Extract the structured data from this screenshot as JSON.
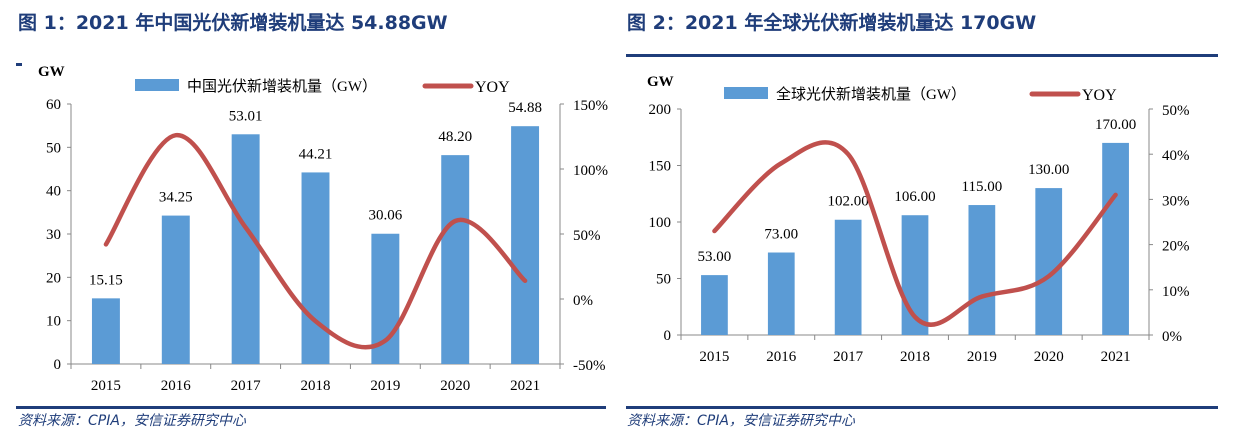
{
  "chart_data": [
    {
      "type": "bar+line",
      "title": "图 1：2021 年中国光伏新增装机量达 54.88GW",
      "source": "资料来源：CPIA，安信证券研究中心",
      "ylabel": "GW",
      "categories": [
        "2015",
        "2016",
        "2017",
        "2018",
        "2019",
        "2020",
        "2021"
      ],
      "series": [
        {
          "name": "中国光伏新增装机量（GW）",
          "type": "bar",
          "axis": "left",
          "values": [
            15.15,
            34.25,
            53.01,
            44.21,
            30.06,
            48.2,
            54.88
          ],
          "labels": [
            "15.15",
            "34.25",
            "53.01",
            "44.21",
            "30.06",
            "48.20",
            "54.88"
          ],
          "color": "#5b9bd5"
        },
        {
          "name": "YOY",
          "type": "line",
          "axis": "right",
          "values": [
            42,
            126,
            55,
            -17,
            -32,
            60,
            14
          ],
          "color": "#c0504d"
        }
      ],
      "ylim": [
        0,
        60
      ],
      "yticks": [
        "0",
        "10",
        "20",
        "30",
        "40",
        "50",
        "60"
      ],
      "y2lim": [
        -50,
        150
      ],
      "y2ticks": [
        "-50%",
        "0%",
        "50%",
        "100%",
        "150%"
      ],
      "legend": "top",
      "grid": false
    },
    {
      "type": "bar+line",
      "title": "图 2：2021 年全球光伏新增装机量达 170GW",
      "source": "资料来源：CPIA，安信证券研究中心",
      "ylabel": "GW",
      "categories": [
        "2015",
        "2016",
        "2017",
        "2018",
        "2019",
        "2020",
        "2021"
      ],
      "series": [
        {
          "name": "全球光伏新增装机量（GW）",
          "type": "bar",
          "axis": "left",
          "values": [
            53,
            73,
            102,
            106,
            115,
            130,
            170
          ],
          "labels": [
            "53.00",
            "73.00",
            "102.00",
            "106.00",
            "115.00",
            "130.00",
            "170.00"
          ],
          "color": "#5b9bd5"
        },
        {
          "name": "YOY",
          "type": "line",
          "axis": "right",
          "values": [
            23,
            38,
            40,
            4,
            8.5,
            13,
            31
          ],
          "color": "#c0504d"
        }
      ],
      "ylim": [
        0,
        200
      ],
      "yticks": [
        "0",
        "50",
        "100",
        "150",
        "200"
      ],
      "y2lim": [
        0,
        50
      ],
      "y2ticks": [
        "0%",
        "10%",
        "20%",
        "30%",
        "40%",
        "50%"
      ],
      "legend": "top",
      "grid": false
    }
  ]
}
